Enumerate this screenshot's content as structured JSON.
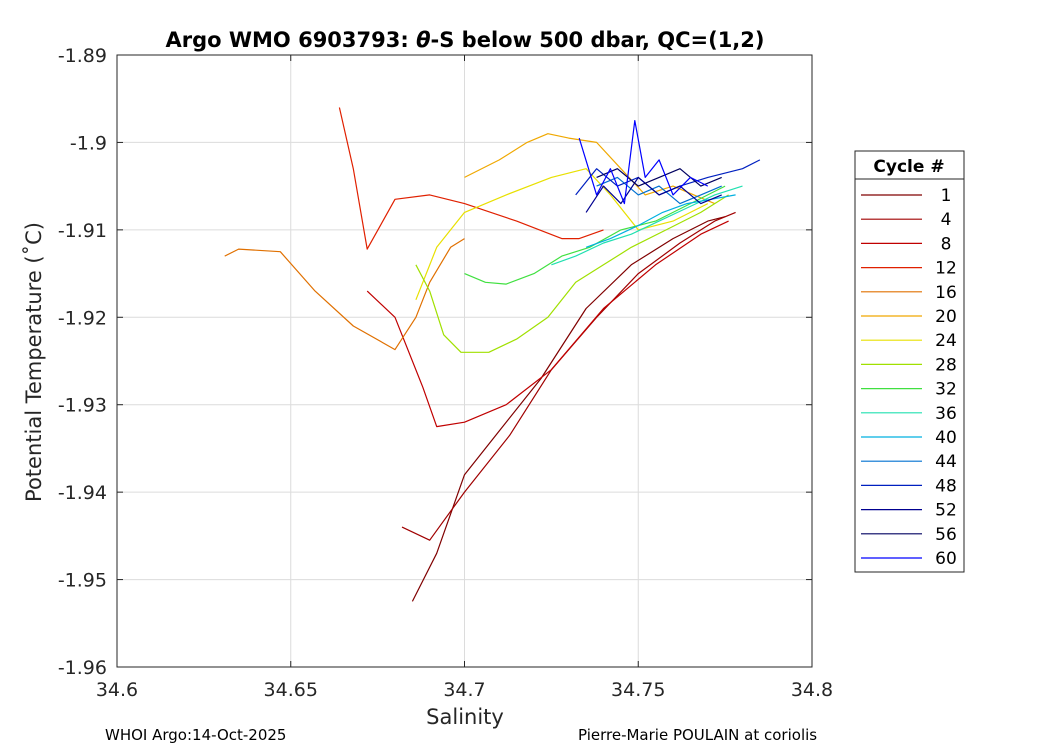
{
  "chart_data": {
    "type": "line",
    "title_prefix": "Argo WMO 6903793: ",
    "title_theta": "θ",
    "title_suffix": "-S below 500 dbar,  QC=(1,2)",
    "xlabel": "Salinity",
    "ylabel": "Potential Temperature (˚C)",
    "xlim": [
      34.6,
      34.8
    ],
    "ylim": [
      -1.96,
      -1.89
    ],
    "xticks": [
      "34.6",
      "34.65",
      "34.7",
      "34.75",
      "34.8"
    ],
    "yticks": [
      "-1.89",
      "-1.9",
      "-1.91",
      "-1.92",
      "-1.93",
      "-1.94",
      "-1.95",
      "-1.96"
    ],
    "grid": true,
    "legend_title": "Cycle #",
    "legend_position": "outside-right",
    "series": [
      {
        "name": "1",
        "color": "#800000",
        "x": [
          34.685,
          34.692,
          34.7,
          34.71,
          34.722,
          34.735,
          34.748,
          34.76,
          34.77,
          34.775
        ],
        "y": [
          -1.9525,
          -1.947,
          -1.938,
          -1.933,
          -1.927,
          -1.919,
          -1.914,
          -1.911,
          -1.909,
          -1.9085
        ]
      },
      {
        "name": "4",
        "color": "#a00000",
        "x": [
          34.682,
          34.69,
          34.7,
          34.713,
          34.725,
          34.738,
          34.75,
          34.762,
          34.772,
          34.778
        ],
        "y": [
          -1.944,
          -1.9455,
          -1.94,
          -1.9335,
          -1.926,
          -1.92,
          -1.915,
          -1.9115,
          -1.909,
          -1.908
        ]
      },
      {
        "name": "8",
        "color": "#c00000",
        "x": [
          34.672,
          34.68,
          34.688,
          34.692,
          34.7,
          34.712,
          34.725,
          34.74,
          34.755,
          34.768,
          34.776
        ],
        "y": [
          -1.917,
          -1.92,
          -1.928,
          -1.9325,
          -1.932,
          -1.93,
          -1.926,
          -1.919,
          -1.914,
          -1.9105,
          -1.909
        ]
      },
      {
        "name": "12",
        "color": "#e02000",
        "x": [
          34.664,
          34.668,
          34.672,
          34.68,
          34.69,
          34.7,
          34.715,
          34.728,
          34.733,
          34.74
        ],
        "y": [
          -1.896,
          -1.903,
          -1.9122,
          -1.9065,
          -1.906,
          -1.907,
          -1.909,
          -1.911,
          -1.911,
          -1.91
        ]
      },
      {
        "name": "16",
        "color": "#e07000",
        "x": [
          34.631,
          34.635,
          34.647,
          34.657,
          34.668,
          34.68,
          34.686,
          34.69,
          34.696,
          34.7
        ],
        "y": [
          -1.913,
          -1.9122,
          -1.9125,
          -1.917,
          -1.921,
          -1.9237,
          -1.92,
          -1.916,
          -1.912,
          -1.911
        ]
      },
      {
        "name": "20",
        "color": "#f0a800",
        "x": [
          34.7,
          34.71,
          34.718,
          34.724,
          34.73,
          34.738,
          34.745,
          34.752,
          34.76,
          34.766,
          34.772
        ],
        "y": [
          -1.904,
          -1.902,
          -1.9,
          -1.899,
          -1.8995,
          -1.9,
          -1.903,
          -1.906,
          -1.905,
          -1.906,
          -1.907
        ]
      },
      {
        "name": "24",
        "color": "#e8e000",
        "x": [
          34.686,
          34.692,
          34.7,
          34.712,
          34.725,
          34.735,
          34.742,
          34.75,
          34.76,
          34.77
        ],
        "y": [
          -1.918,
          -1.912,
          -1.908,
          -1.906,
          -1.904,
          -1.903,
          -1.906,
          -1.91,
          -1.909,
          -1.907
        ]
      },
      {
        "name": "28",
        "color": "#a0e000",
        "x": [
          34.686,
          34.69,
          34.694,
          34.699,
          34.707,
          34.715,
          34.724,
          34.732,
          34.74,
          34.748,
          34.758,
          34.768,
          34.776
        ],
        "y": [
          -1.914,
          -1.917,
          -1.922,
          -1.924,
          -1.924,
          -1.9225,
          -1.92,
          -1.916,
          -1.914,
          -1.912,
          -1.91,
          -1.908,
          -1.906
        ]
      },
      {
        "name": "32",
        "color": "#40e040",
        "x": [
          34.7,
          34.706,
          34.712,
          34.72,
          34.728,
          34.736,
          34.745,
          34.755,
          34.765,
          34.775
        ],
        "y": [
          -1.915,
          -1.916,
          -1.9162,
          -1.915,
          -1.913,
          -1.912,
          -1.91,
          -1.909,
          -1.907,
          -1.905
        ]
      },
      {
        "name": "36",
        "color": "#20e0b0",
        "x": [
          34.725,
          34.732,
          34.74,
          34.748,
          34.756,
          34.764,
          34.772,
          34.78
        ],
        "y": [
          -1.914,
          -1.913,
          -1.9115,
          -1.9105,
          -1.909,
          -1.9075,
          -1.906,
          -1.905
        ]
      },
      {
        "name": "40",
        "color": "#00b0e0",
        "x": [
          34.735,
          34.742,
          34.75,
          34.757,
          34.764,
          34.771,
          34.778
        ],
        "y": [
          -1.912,
          -1.911,
          -1.9095,
          -1.908,
          -1.907,
          -1.9065,
          -1.906
        ]
      },
      {
        "name": "44",
        "color": "#0070d0",
        "x": [
          34.738,
          34.744,
          34.75,
          34.756,
          34.762,
          34.768,
          34.774
        ],
        "y": [
          -1.905,
          -1.904,
          -1.906,
          -1.905,
          -1.907,
          -1.906,
          -1.905
        ]
      },
      {
        "name": "48",
        "color": "#0020c0",
        "x": [
          34.732,
          34.738,
          34.744,
          34.75,
          34.756,
          34.762,
          34.77,
          34.78,
          34.785
        ],
        "y": [
          -1.906,
          -1.903,
          -1.905,
          -1.904,
          -1.906,
          -1.905,
          -1.904,
          -1.903,
          -1.902
        ]
      },
      {
        "name": "52",
        "color": "#000090",
        "x": [
          34.735,
          34.74,
          34.745,
          34.75,
          34.756,
          34.762,
          34.768,
          34.774
        ],
        "y": [
          -1.908,
          -1.905,
          -1.907,
          -1.904,
          -1.906,
          -1.905,
          -1.907,
          -1.906
        ]
      },
      {
        "name": "56",
        "color": "#000060",
        "x": [
          34.738,
          34.744,
          34.75,
          34.756,
          34.762,
          34.768,
          34.774
        ],
        "y": [
          -1.904,
          -1.903,
          -1.905,
          -1.904,
          -1.903,
          -1.905,
          -1.904
        ]
      },
      {
        "name": "60",
        "color": "#0000ff",
        "x": [
          34.733,
          34.738,
          34.742,
          34.746,
          34.749,
          34.752,
          34.756,
          34.76,
          34.765,
          34.77
        ],
        "y": [
          -1.8995,
          -1.906,
          -1.903,
          -1.907,
          -1.8975,
          -1.904,
          -1.902,
          -1.906,
          -1.904,
          -1.905
        ]
      }
    ]
  },
  "footer": {
    "left": "WHOI Argo:14-Oct-2025",
    "right": "Pierre-Marie POULAIN at coriolis"
  }
}
